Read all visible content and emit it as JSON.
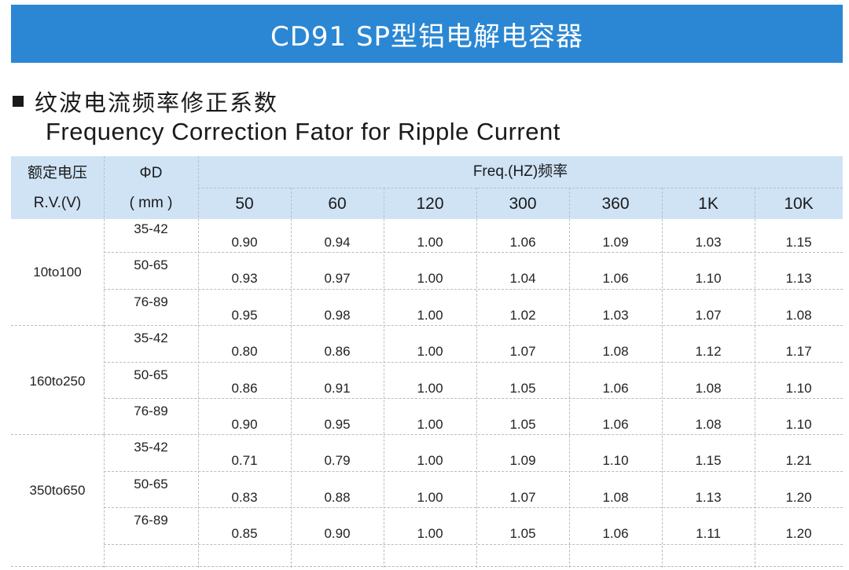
{
  "banner": {
    "title": "CD91  SP型铝电解电容器"
  },
  "section": {
    "title_cn": "纹波电流频率修正系数",
    "title_en": "Frequency Correction Fator for  Ripple Current"
  },
  "table": {
    "header": {
      "rv_cn": "额定电压",
      "rv_en": "R.V.(V)",
      "phid": "ΦD",
      "mm": "( mm )",
      "freq_title": "Freq.(HZ)频率",
      "freqs": [
        "50",
        "60",
        "120",
        "300",
        "360",
        "1K",
        "10K"
      ]
    },
    "groups": [
      {
        "voltage": "10to100"
      },
      {
        "voltage": "160to250"
      },
      {
        "voltage": "350to650"
      }
    ],
    "rows": [
      {
        "d": "35-42",
        "values": [
          "0.90",
          "0.94",
          "1.00",
          "1.06",
          "1.09",
          "1.03",
          "1.15"
        ]
      },
      {
        "d": "50-65",
        "values": [
          "0.93",
          "0.97",
          "1.00",
          "1.04",
          "1.06",
          "1.10",
          "1.13"
        ]
      },
      {
        "d": "76-89",
        "values": [
          "0.95",
          "0.98",
          "1.00",
          "1.02",
          "1.03",
          "1.07",
          "1.08"
        ]
      },
      {
        "d": "35-42",
        "values": [
          "0.80",
          "0.86",
          "1.00",
          "1.07",
          "1.08",
          "1.12",
          "1.17"
        ]
      },
      {
        "d": "50-65",
        "values": [
          "0.86",
          "0.91",
          "1.00",
          "1.05",
          "1.06",
          "1.08",
          "1.10"
        ]
      },
      {
        "d": "76-89",
        "values": [
          "0.90",
          "0.95",
          "1.00",
          "1.05",
          "1.06",
          "1.08",
          "1.10"
        ]
      },
      {
        "d": "35-42",
        "values": [
          "0.71",
          "0.79",
          "1.00",
          "1.09",
          "1.10",
          "1.15",
          "1.21"
        ]
      },
      {
        "d": "50-65",
        "values": [
          "0.83",
          "0.88",
          "1.00",
          "1.07",
          "1.08",
          "1.13",
          "1.20"
        ]
      },
      {
        "d": "76-89",
        "values": [
          "0.85",
          "0.90",
          "1.00",
          "1.05",
          "1.06",
          "1.11",
          "1.20"
        ]
      }
    ]
  },
  "colors": {
    "banner": "#2b87d3",
    "header_bg": "#cfe3f5"
  }
}
